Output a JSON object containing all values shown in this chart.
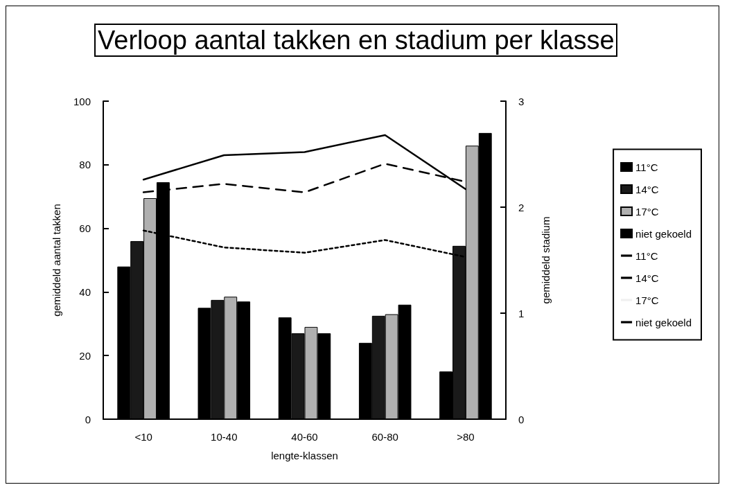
{
  "chart_data": {
    "type": "bar",
    "title": "Verloop aantal takken en stadium per klasse",
    "xlabel": "lengte-klassen",
    "ylabel": "gemiddeld aantal takken",
    "y2label": "gemiddeld stadium",
    "categories": [
      "<10",
      "10-40",
      "40-60",
      "60-80",
      ">80"
    ],
    "series": [
      {
        "name": "11°C",
        "color": "#000000",
        "values": [
          48,
          35,
          32,
          24,
          15
        ]
      },
      {
        "name": "14°C",
        "color": "#1a1a1a",
        "values": [
          56,
          37.5,
          27,
          32.5,
          54.5
        ]
      },
      {
        "name": "17°C",
        "color": "#b0b0b0",
        "values": [
          69.5,
          38.5,
          29,
          33,
          86
        ]
      },
      {
        "name": "niet gekoeld",
        "color": "#000000",
        "values": [
          74.5,
          37,
          27,
          36,
          90
        ]
      },
      {
        "name": "11°C",
        "type": "line",
        "axis": "y2",
        "color": "#000000",
        "line_style": "solid",
        "values": [
          2.26,
          2.49,
          2.52,
          2.68,
          2.17
        ]
      },
      {
        "name": "14°C",
        "type": "line",
        "axis": "y2",
        "color": "#000000",
        "line_style": "dashed",
        "values": [
          2.14,
          2.22,
          2.14,
          2.41,
          2.24
        ]
      },
      {
        "name": "17°C",
        "type": "line",
        "axis": "y2",
        "color": "#f0f0f0",
        "line_style": "solid",
        "values": [
          null,
          null,
          null,
          null,
          null
        ]
      },
      {
        "name": "niet gekoeld",
        "type": "line",
        "axis": "y2",
        "color": "#000000",
        "line_style": "dotted",
        "values": [
          1.78,
          1.62,
          1.57,
          1.69,
          1.53
        ]
      }
    ],
    "ylim": [
      0,
      100
    ],
    "yticks": [
      0,
      20,
      40,
      60,
      80,
      100
    ],
    "y2lim": [
      0,
      3
    ],
    "y2ticks": [
      0,
      1,
      2,
      3
    ],
    "grid": false,
    "legend": "right",
    "marker": "none"
  }
}
